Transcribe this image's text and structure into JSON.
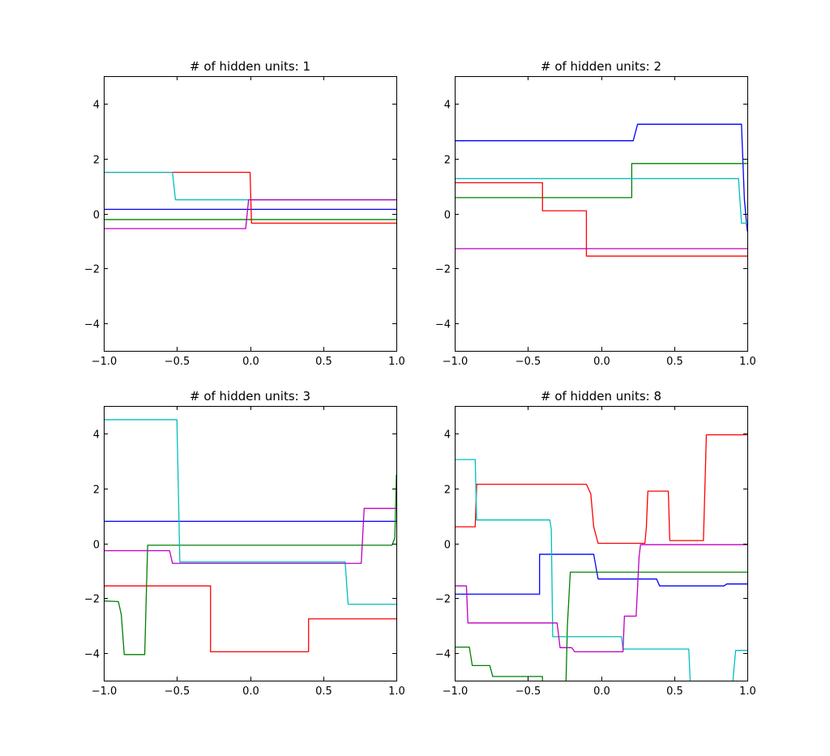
{
  "chart_data": [
    {
      "type": "line",
      "title": "# of hidden units: 1",
      "xlim": [
        -1.0,
        1.0
      ],
      "ylim": [
        -5,
        5
      ],
      "xticks": [
        -1.0,
        -0.5,
        0.0,
        0.5,
        1.0
      ],
      "xtick_labels": [
        "−1.0",
        "−0.5",
        "0.0",
        "0.5",
        "1.0"
      ],
      "yticks": [
        -4,
        -2,
        0,
        2,
        4
      ],
      "ytick_labels": [
        "−4",
        "−2",
        "0",
        "2",
        "4"
      ],
      "grid": false,
      "series": [
        {
          "color": "#0000ff",
          "x": [
            -1.0,
            1.0
          ],
          "y": [
            0.15,
            0.15
          ]
        },
        {
          "color": "#008000",
          "x": [
            -1.0,
            1.0
          ],
          "y": [
            -0.22,
            -0.22
          ]
        },
        {
          "color": "#ff0000",
          "x": [
            -1.0,
            0.0,
            0.01,
            1.0
          ],
          "y": [
            1.5,
            1.5,
            -0.35,
            -0.35
          ]
        },
        {
          "color": "#00bfbf",
          "x": [
            -1.0,
            -0.53,
            -0.51,
            1.0
          ],
          "y": [
            1.5,
            1.5,
            0.5,
            0.5
          ]
        },
        {
          "color": "#bf00bf",
          "x": [
            -1.0,
            -0.03,
            -0.01,
            1.0
          ],
          "y": [
            -0.55,
            -0.55,
            0.5,
            0.5
          ]
        }
      ]
    },
    {
      "type": "line",
      "title": "# of hidden units: 2",
      "xlim": [
        -1.0,
        1.0
      ],
      "ylim": [
        -5,
        5
      ],
      "xticks": [
        -1.0,
        -0.5,
        0.0,
        0.5,
        1.0
      ],
      "xtick_labels": [
        "−1.0",
        "−0.5",
        "0.0",
        "0.5",
        "1.0"
      ],
      "yticks": [
        -4,
        -2,
        0,
        2,
        4
      ],
      "ytick_labels": [
        "−4",
        "−2",
        "0",
        "2",
        "4"
      ],
      "grid": false,
      "series": [
        {
          "color": "#0000ff",
          "x": [
            -1.0,
            0.22,
            0.25,
            0.96,
            0.98,
            1.0
          ],
          "y": [
            2.65,
            2.65,
            3.25,
            3.25,
            0.5,
            -0.65
          ]
        },
        {
          "color": "#008000",
          "x": [
            -1.0,
            0.21,
            0.21,
            1.0
          ],
          "y": [
            0.58,
            0.58,
            1.82,
            1.82
          ]
        },
        {
          "color": "#ff0000",
          "x": [
            -1.0,
            -0.4,
            -0.4,
            -0.1,
            -0.1,
            1.0
          ],
          "y": [
            1.12,
            1.12,
            0.1,
            0.1,
            -1.55,
            -1.55
          ]
        },
        {
          "color": "#00bfbf",
          "x": [
            -1.0,
            0.94,
            0.96,
            1.0
          ],
          "y": [
            1.27,
            1.27,
            -0.35,
            -0.35
          ]
        },
        {
          "color": "#bf00bf",
          "x": [
            -1.0,
            1.0
          ],
          "y": [
            -1.28,
            -1.28
          ]
        }
      ]
    },
    {
      "type": "line",
      "title": "# of hidden units: 3",
      "xlim": [
        -1.0,
        1.0
      ],
      "ylim": [
        -5,
        5
      ],
      "xticks": [
        -1.0,
        -0.5,
        0.0,
        0.5,
        1.0
      ],
      "xtick_labels": [
        "−1.0",
        "−0.5",
        "0.0",
        "0.5",
        "1.0"
      ],
      "yticks": [
        -4,
        -2,
        0,
        2,
        4
      ],
      "ytick_labels": [
        "−4",
        "−2",
        "0",
        "2",
        "4"
      ],
      "grid": false,
      "series": [
        {
          "color": "#0000ff",
          "x": [
            -1.0,
            1.0
          ],
          "y": [
            0.8,
            0.8
          ]
        },
        {
          "color": "#008000",
          "x": [
            -1.0,
            -0.9,
            -0.88,
            -0.86,
            -0.72,
            -0.7,
            0.97,
            0.99,
            1.0
          ],
          "y": [
            -2.1,
            -2.12,
            -2.6,
            -4.05,
            -4.05,
            -0.07,
            -0.07,
            0.2,
            2.5
          ]
        },
        {
          "color": "#ff0000",
          "x": [
            -1.0,
            -0.27,
            -0.27,
            0.4,
            0.4,
            1.0
          ],
          "y": [
            -1.55,
            -1.55,
            -3.95,
            -3.95,
            -2.75,
            -2.75
          ]
        },
        {
          "color": "#00bfbf",
          "x": [
            -1.0,
            -0.5,
            -0.48,
            0.65,
            0.67,
            1.0
          ],
          "y": [
            4.5,
            4.5,
            -0.68,
            -0.68,
            -2.22,
            -2.22
          ]
        },
        {
          "color": "#bf00bf",
          "x": [
            -1.0,
            -0.55,
            -0.53,
            0.76,
            0.78,
            1.0
          ],
          "y": [
            -0.27,
            -0.27,
            -0.73,
            -0.73,
            1.27,
            1.27
          ]
        }
      ]
    },
    {
      "type": "line",
      "title": "# of hidden units: 8",
      "xlim": [
        -1.0,
        1.0
      ],
      "ylim": [
        -5,
        5
      ],
      "xticks": [
        -1.0,
        -0.5,
        0.0,
        0.5,
        1.0
      ],
      "xtick_labels": [
        "−1.0",
        "−0.5",
        "0.0",
        "0.5",
        "1.0"
      ],
      "yticks": [
        -4,
        -2,
        0,
        2,
        4
      ],
      "ytick_labels": [
        "−4",
        "−2",
        "0",
        "2",
        "4"
      ],
      "grid": false,
      "series": [
        {
          "color": "#0000ff",
          "x": [
            -1.0,
            -0.42,
            -0.42,
            -0.05,
            -0.02,
            0.38,
            0.4,
            0.84,
            0.86,
            1.0
          ],
          "y": [
            -1.85,
            -1.85,
            -0.4,
            -0.4,
            -1.3,
            -1.3,
            -1.55,
            -1.55,
            -1.48,
            -1.48
          ]
        },
        {
          "color": "#008000",
          "x": [
            -1.0,
            -0.9,
            -0.88,
            -0.76,
            -0.74,
            -0.4,
            -0.4,
            -0.24,
            -0.23,
            -0.21,
            1.0
          ],
          "y": [
            -3.78,
            -3.78,
            -4.45,
            -4.45,
            -4.85,
            -4.85,
            -5.2,
            -5.2,
            -3.0,
            -1.05,
            -1.05
          ]
        },
        {
          "color": "#ff0000",
          "x": [
            -1.0,
            -0.86,
            -0.85,
            -0.1,
            -0.07,
            -0.05,
            -0.02,
            0.3,
            0.31,
            0.32,
            0.46,
            0.47,
            0.7,
            0.71,
            0.72,
            1.0
          ],
          "y": [
            0.6,
            0.6,
            2.15,
            2.15,
            1.8,
            0.6,
            0.0,
            0.0,
            0.6,
            1.9,
            1.9,
            0.1,
            0.1,
            2.0,
            3.95,
            3.95
          ]
        },
        {
          "color": "#00bfbf",
          "x": [
            -1.0,
            -0.86,
            -0.85,
            -0.35,
            -0.34,
            -0.33,
            0.14,
            0.15,
            0.6,
            0.61,
            0.9,
            0.92,
            1.0
          ],
          "y": [
            3.05,
            3.05,
            0.85,
            0.85,
            0.5,
            -3.4,
            -3.4,
            -3.85,
            -3.85,
            -5.1,
            -5.1,
            -3.9,
            -3.9
          ]
        },
        {
          "color": "#bf00bf",
          "x": [
            -1.0,
            -0.92,
            -0.91,
            -0.3,
            -0.28,
            -0.2,
            -0.18,
            0.15,
            0.16,
            0.24,
            0.26,
            0.27,
            1.0
          ],
          "y": [
            -1.55,
            -1.55,
            -2.9,
            -2.9,
            -3.8,
            -3.8,
            -3.95,
            -3.95,
            -2.65,
            -2.65,
            -0.5,
            -0.05,
            -0.05
          ]
        }
      ]
    }
  ]
}
